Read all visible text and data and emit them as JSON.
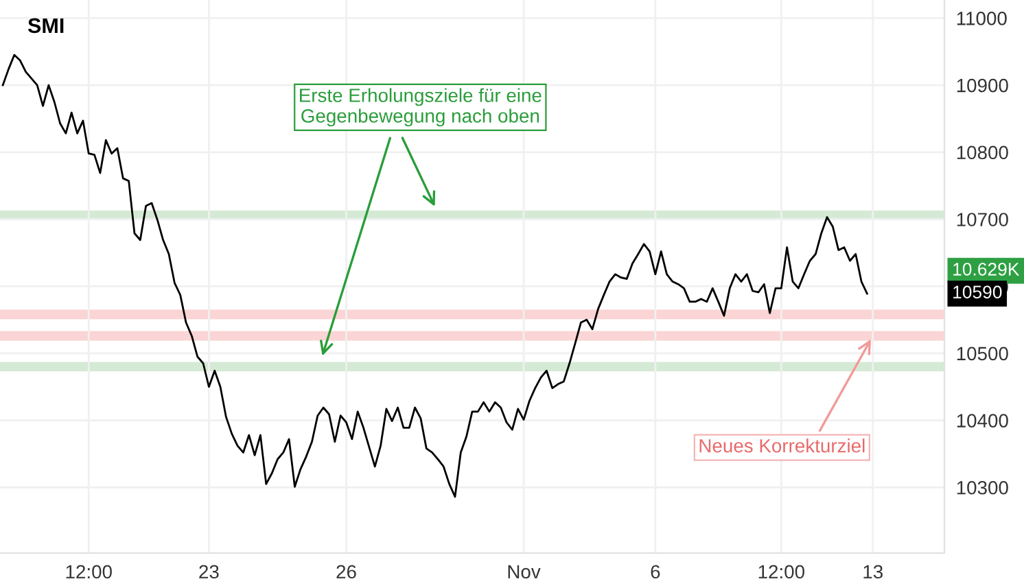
{
  "chart_data": {
    "type": "line",
    "title": "SMI",
    "categories": [
      null,
      null,
      null,
      null,
      null,
      null,
      null,
      null,
      null,
      null,
      null,
      null,
      null,
      null,
      null,
      "12:00",
      null,
      null,
      null,
      null,
      null,
      null,
      null,
      null,
      null,
      null,
      null,
      null,
      null,
      null,
      null,
      null,
      null,
      null,
      null,
      null,
      "23",
      null,
      null,
      null,
      null,
      null,
      null,
      null,
      null,
      null,
      null,
      null,
      null,
      null,
      null,
      null,
      null,
      null,
      null,
      null,
      null,
      null,
      null,
      null,
      "26",
      null,
      null,
      null,
      null,
      null,
      null,
      null,
      null,
      null,
      null,
      null,
      null,
      null,
      null,
      null,
      null,
      null,
      null,
      null,
      null,
      null,
      null,
      null,
      null,
      null,
      null,
      null,
      null,
      null,
      null,
      "Nov",
      null,
      null,
      null,
      null,
      null,
      null,
      null,
      null,
      null,
      null,
      null,
      null,
      null,
      null,
      null,
      null,
      null,
      null,
      null,
      null,
      null,
      null,
      "6",
      null,
      null,
      null,
      null,
      null,
      null,
      null,
      null,
      null,
      null,
      null,
      null,
      null,
      null,
      null,
      null,
      null,
      null,
      null,
      null,
      null,
      "12:00",
      null,
      null,
      null,
      null,
      null,
      null,
      null,
      null,
      null,
      null,
      null,
      null,
      null,
      null,
      null,
      "13",
      null,
      null,
      null,
      null,
      null,
      null,
      null,
      null,
      null,
      null,
      null,
      null
    ],
    "series": [
      {
        "color": "#000000",
        "values": [
          10900,
          10924,
          10945,
          10937,
          10920,
          10910,
          10900,
          10869,
          10900,
          10875,
          10843,
          10828,
          10859,
          10828,
          10847,
          10798,
          10796,
          10769,
          10818,
          10798,
          10806,
          10761,
          10757,
          10679,
          10669,
          10720,
          10724,
          10699,
          10669,
          10648,
          10605,
          10587,
          10546,
          10526,
          10495,
          10485,
          10450,
          10474,
          10450,
          10405,
          10380,
          10362,
          10352,
          10378,
          10348,
          10378,
          10305,
          10321,
          10342,
          10352,
          10372,
          10301,
          10327,
          10346,
          10368,
          10407,
          10419,
          10409,
          10368,
          10407,
          10397,
          10372,
          10413,
          10389,
          10360,
          10331,
          10362,
          10417,
          10399,
          10419,
          10389,
          10389,
          10419,
          10403,
          10358,
          10352,
          10342,
          10331,
          10305,
          10286,
          10352,
          10376,
          10413,
          10413,
          10427,
          10413,
          10427,
          10419,
          10397,
          10386,
          10417,
          10401,
          10429,
          10448,
          10464,
          10474,
          10448,
          10454,
          10458,
          10485,
          10515,
          10546,
          10550,
          10536,
          10566,
          10587,
          10607,
          10618,
          10613,
          10611,
          10634,
          10648,
          10663,
          10652,
          10618,
          10652,
          10618,
          10607,
          10603,
          10597,
          10577,
          10577,
          10581,
          10577,
          10597,
          10577,
          10556,
          10597,
          10618,
          10607,
          10618,
          10593,
          10591,
          10603,
          10560,
          10597,
          10597,
          10658,
          10607,
          10597,
          10618,
          10638,
          10648,
          10679,
          10703,
          10689,
          10654,
          10658,
          10638,
          10648,
          10607,
          10589,
          null,
          null,
          null,
          null,
          null,
          null,
          null,
          null,
          null,
          null,
          null,
          null,
          null
        ]
      }
    ],
    "ylim": [
      10202,
      11027
    ],
    "yticks": [
      10300,
      10400,
      10500,
      10600,
      10700,
      10800,
      10900,
      11000
    ],
    "grid": true,
    "ref_lines": [
      {
        "axis": "y",
        "value": 10706,
        "color": "#d5ead5"
      },
      {
        "axis": "y",
        "value": 10480,
        "color": "#d5ead5"
      },
      {
        "axis": "y",
        "value": 10558,
        "color": "#fbd5d5"
      },
      {
        "axis": "y",
        "value": 10526,
        "color": "#fbd5d5"
      }
    ],
    "annotations": [
      "Erste Erholungsziele für eine\nGegenbewegung nach oben",
      {
        "text": "Neues Korrekturziel",
        "x": "13",
        "y": 10526
      },
      "10.629K",
      "10590"
    ]
  }
}
